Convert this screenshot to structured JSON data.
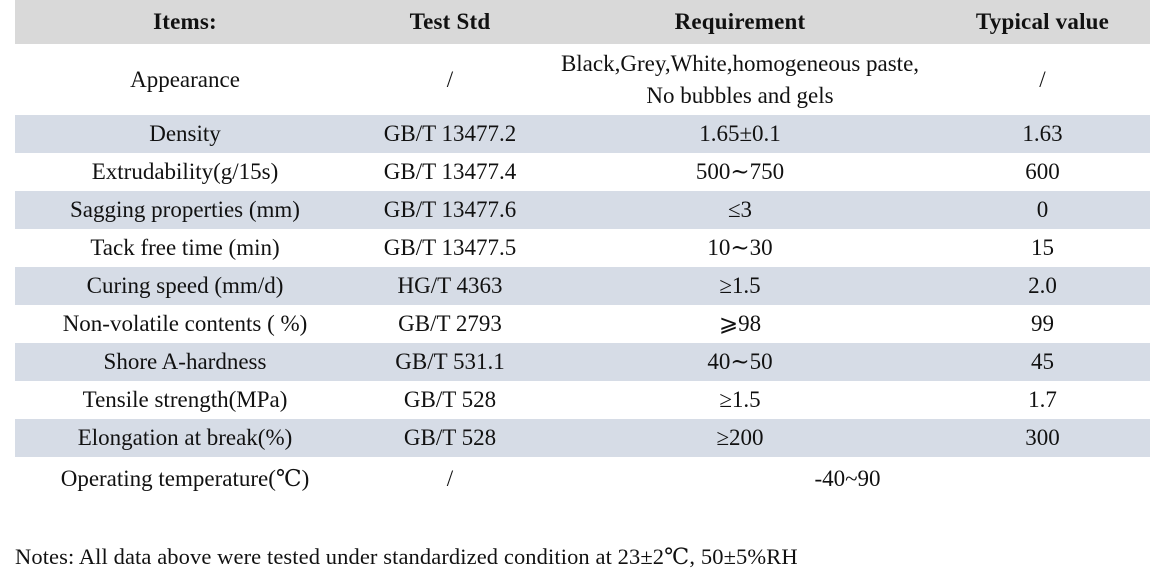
{
  "table": {
    "columns": [
      "Items:",
      "Test Std",
      "Requirement",
      "Typical value"
    ],
    "rows": [
      {
        "item": "Appearance",
        "test_std": "/",
        "requirement": "Black,Grey,White,homogeneous paste, No bubbles and gels",
        "typical_value": "/"
      },
      {
        "item": "Density",
        "test_std": "GB/T 13477.2",
        "requirement": "1.65±0.1",
        "typical_value": "1.63"
      },
      {
        "item": "Extrudability(g/15s)",
        "test_std": "GB/T 13477.4",
        "requirement": "500∼750",
        "typical_value": "600"
      },
      {
        "item": "Sagging properties (mm)",
        "test_std": "GB/T 13477.6",
        "requirement": "≤3",
        "typical_value": "0"
      },
      {
        "item": "Tack free time (min)",
        "test_std": "GB/T 13477.5",
        "requirement": "10∼30",
        "typical_value": "15"
      },
      {
        "item": "Curing speed (mm/d)",
        "test_std": "HG/T 4363",
        "requirement": "≥1.5",
        "typical_value": "2.0"
      },
      {
        "item": "Non-volatile contents ( %)",
        "test_std": "GB/T 2793",
        "requirement": "⩾98",
        "typical_value": "99"
      },
      {
        "item": "Shore A-hardness",
        "test_std": "GB/T 531.1",
        "requirement": "40∼50",
        "typical_value": "45"
      },
      {
        "item": "Tensile strength(MPa)",
        "test_std": "GB/T 528",
        "requirement": "≥1.5",
        "typical_value": "1.7"
      },
      {
        "item": "Elongation at break(%)",
        "test_std": "GB/T 528",
        "requirement": "≥200",
        "typical_value": "300"
      },
      {
        "item": "Operating temperature(℃)",
        "test_std": "/",
        "requirement": "-40~90",
        "typical_value": null
      }
    ]
  },
  "notes": "Notes: All data above were tested under standardized condition at 23±2℃, 50±5%RH",
  "colors": {
    "header_bg": "#d9d9d9",
    "stripe_bg": "#d6dce6",
    "text": "#111111"
  }
}
